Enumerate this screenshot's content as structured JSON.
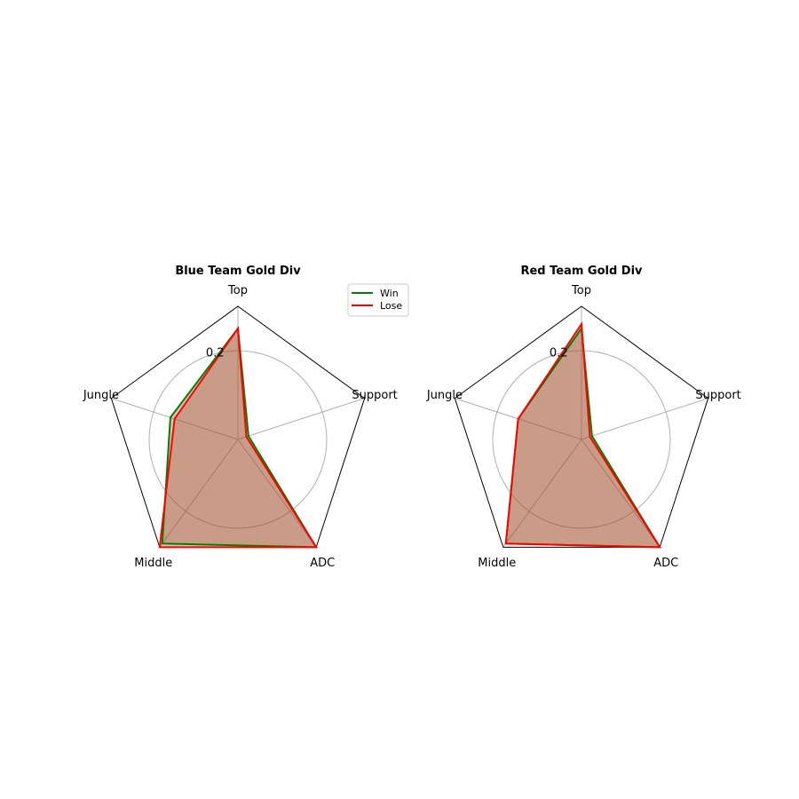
{
  "chart_data": [
    {
      "type": "radar",
      "title": "Blue Team Gold Div",
      "categories": [
        "Top",
        "Support",
        "ADC",
        "Middle",
        "Jungle"
      ],
      "rmax": 0.3,
      "rticks": [
        0.2
      ],
      "rtick_labels": [
        "0.2"
      ],
      "series": [
        {
          "name": "Win",
          "color": "#008000",
          "values": [
            0.25,
            0.025,
            0.3,
            0.29,
            0.16
          ]
        },
        {
          "name": "Lose",
          "color": "#ff0000",
          "values": [
            0.25,
            0.02,
            0.3,
            0.3,
            0.15
          ]
        }
      ],
      "fill_color": "#a0522d",
      "legend": "top-right"
    },
    {
      "type": "radar",
      "title": "Red Team Gold Div",
      "categories": [
        "Top",
        "Support",
        "ADC",
        "Middle",
        "Jungle"
      ],
      "rmax": 0.3,
      "rticks": [
        0.2
      ],
      "rtick_labels": [
        "0.2"
      ],
      "series": [
        {
          "name": "Win",
          "color": "#008000",
          "values": [
            0.25,
            0.025,
            0.3,
            0.29,
            0.15
          ]
        },
        {
          "name": "Lose",
          "color": "#ff0000",
          "values": [
            0.26,
            0.02,
            0.3,
            0.29,
            0.15
          ]
        }
      ],
      "fill_color": "#a0522d"
    }
  ]
}
